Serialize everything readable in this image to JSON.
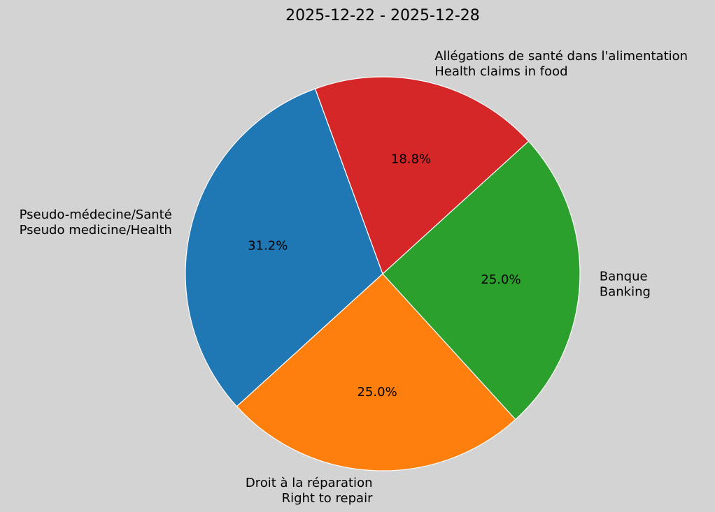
{
  "chart_data": {
    "type": "pie",
    "title": "2025-12-22 - 2025-12-28",
    "start_angle_deg": 110,
    "direction": "counterclockwise",
    "background": "#d3d3d3",
    "edge_color": "#ffffff",
    "slices": [
      {
        "label": [
          "Pseudo-médecine/Santé",
          "Pseudo medicine/Health"
        ],
        "value": 31.2,
        "pct_label": "31.2%",
        "color": "#1f77b4"
      },
      {
        "label": [
          "Droit à la réparation",
          "Right to repair"
        ],
        "value": 25.0,
        "pct_label": "25.0%",
        "color": "#ff7f0e"
      },
      {
        "label": [
          "Banque",
          "Banking"
        ],
        "value": 25.0,
        "pct_label": "25.0%",
        "color": "#2ca02c"
      },
      {
        "label": [
          "Allégations de santé dans l'alimentation",
          "Health claims in food"
        ],
        "value": 18.8,
        "pct_label": "18.8%",
        "color": "#d62728"
      }
    ]
  }
}
